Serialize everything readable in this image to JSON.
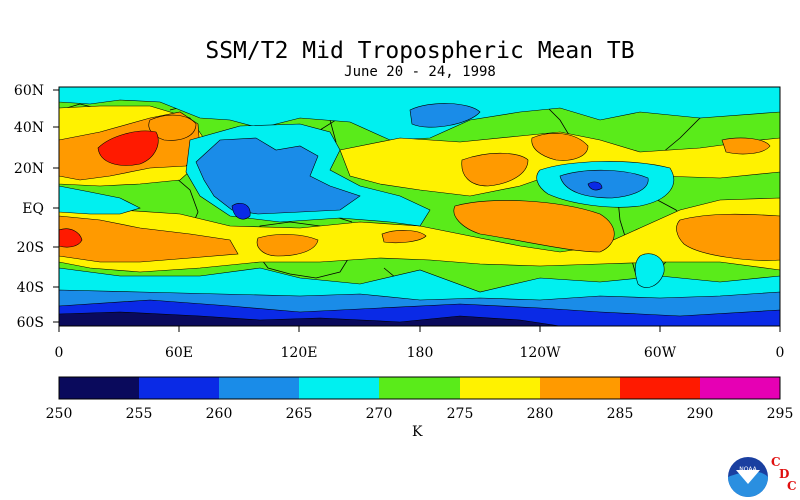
{
  "title": "SSM/T2 Mid Tropospheric Mean TB",
  "subtitle": "June 20 - 24, 1998",
  "lat_labels": [
    "60N",
    "40N",
    "20N",
    "EQ",
    "20S",
    "40S",
    "60S"
  ],
  "lon_labels": [
    "0",
    "60E",
    "120E",
    "180",
    "120W",
    "60W",
    "0"
  ],
  "colorbar": {
    "unit": "K",
    "ticks": [
      "250",
      "255",
      "260",
      "265",
      "270",
      "275",
      "280",
      "285",
      "290",
      "295"
    ],
    "colors": [
      "#0a0a5c",
      "#0a2ae6",
      "#1a8ce8",
      "#00f0f0",
      "#5aeb1a",
      "#fff200",
      "#ff9a00",
      "#ff1a00",
      "#e600b4"
    ]
  },
  "logo": {
    "noaa_text": "NOAA",
    "cdc_letters": [
      "C",
      "D",
      "C"
    ]
  },
  "map_palette": {
    "t255": "#0a0a5c",
    "t260": "#0a2ae6",
    "t265": "#1a8ce8",
    "t270": "#00f0f0",
    "t275": "#5aeb1a",
    "t280": "#fff200",
    "t285": "#ff9a00",
    "t290": "#ff1a00"
  }
}
